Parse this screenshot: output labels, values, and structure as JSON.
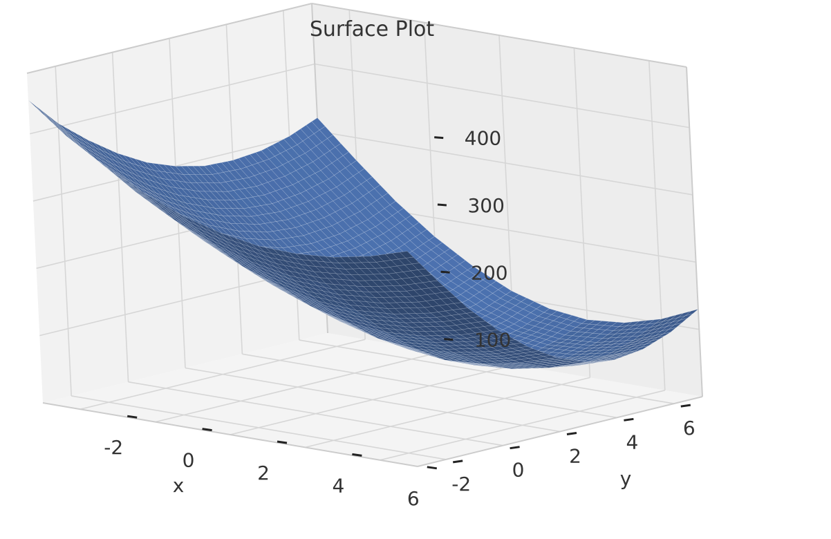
{
  "chart_data": {
    "type": "surface",
    "title": "Surface Plot",
    "xlabel": "x",
    "ylabel": "y",
    "zlabel": "",
    "x_ticks": [
      -2,
      0,
      2,
      4,
      6
    ],
    "y_ticks": [
      -2,
      0,
      2,
      4,
      6
    ],
    "z_ticks": [
      100,
      200,
      300,
      400
    ],
    "x_range": [
      -3,
      7
    ],
    "y_range": [
      -3,
      7
    ],
    "z_range": [
      0,
      490
    ],
    "surface": {
      "x_grid": [
        -3,
        -2,
        -1,
        0,
        1,
        2,
        3,
        4,
        5,
        6,
        7
      ],
      "y_grid": [
        -3,
        -2,
        -1,
        0,
        1,
        2,
        3,
        4,
        5,
        6,
        7
      ],
      "z": [
        [
          450,
          405,
          370,
          340,
          316,
          300,
          290,
          288,
          292,
          303,
          320
        ],
        [
          405,
          360,
          322,
          290,
          265,
          247,
          236,
          233,
          238,
          249,
          266
        ],
        [
          370,
          322,
          282,
          248,
          220,
          200,
          187,
          183,
          187,
          198,
          215
        ],
        [
          340,
          290,
          248,
          211,
          182,
          160,
          145,
          140,
          144,
          155,
          172
        ],
        [
          316,
          265,
          220,
          182,
          150,
          127,
          111,
          105,
          109,
          120,
          137
        ],
        [
          300,
          247,
          200,
          160,
          127,
          101,
          85,
          78,
          82,
          93,
          110
        ],
        [
          290,
          236,
          187,
          145,
          111,
          85,
          67,
          60,
          64,
          75,
          93
        ],
        [
          288,
          233,
          183,
          140,
          105,
          78,
          60,
          52,
          56,
          68,
          86
        ],
        [
          292,
          238,
          187,
          144,
          109,
          82,
          64,
          56,
          60,
          72,
          91
        ],
        [
          303,
          249,
          198,
          155,
          120,
          93,
          75,
          68,
          72,
          85,
          106
        ],
        [
          320,
          266,
          215,
          172,
          137,
          110,
          93,
          86,
          91,
          106,
          130
        ]
      ]
    },
    "colors": {
      "surface": "#4c72b0",
      "pane_left": "#f2f2f2",
      "pane_right": "#ededed",
      "pane_floor": "#f4f4f4",
      "grid": "#d6d6d6",
      "text": "#333333"
    },
    "grid": true
  }
}
